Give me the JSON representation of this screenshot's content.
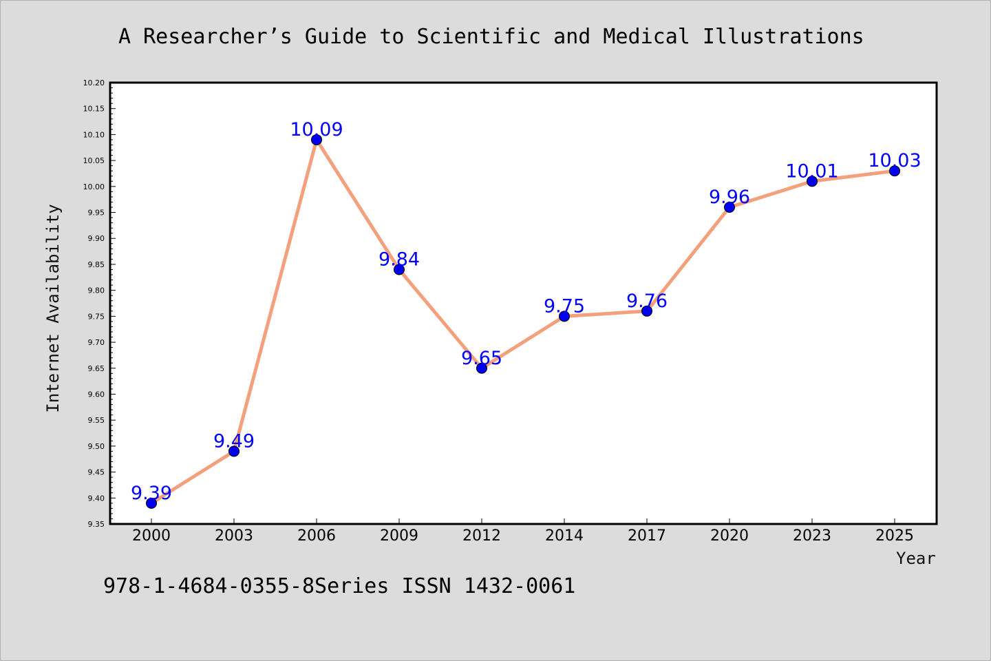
{
  "title": "A Researcher’s Guide to Scientific and Medical Illustrations",
  "footer": "978-1-4684-0355-8Series ISSN 1432-0061",
  "colors": {
    "background": "#dcdcdc",
    "plot_background": "#ffffff",
    "line": "#f4a07c",
    "marker": "#0000ee",
    "data_label": "#0000ff"
  },
  "chart_data": {
    "type": "line",
    "xlabel": "Year",
    "ylabel": "Internet Availability",
    "categories": [
      "2000",
      "2003",
      "2006",
      "2009",
      "2012",
      "2014",
      "2017",
      "2020",
      "2023",
      "2025"
    ],
    "series": [
      {
        "values": [
          9.39,
          9.49,
          10.09,
          9.84,
          9.65,
          9.75,
          9.76,
          9.96,
          10.01,
          10.03
        ]
      }
    ],
    "data_labels": [
      "9.39",
      "9.49",
      "10.09",
      "9.84",
      "9.65",
      "9.75",
      "9.76",
      "9.96",
      "10.01",
      "10.03"
    ],
    "ylim": [
      9.35,
      10.2
    ],
    "yticks": [
      "9.35",
      "9.40",
      "9.45",
      "9.50",
      "9.55",
      "9.60",
      "9.65",
      "9.70",
      "9.75",
      "9.80",
      "9.85",
      "9.90",
      "9.95",
      "10.00",
      "10.05",
      "10.10",
      "10.15",
      "10.20"
    ],
    "grid": false,
    "legend": "none"
  }
}
